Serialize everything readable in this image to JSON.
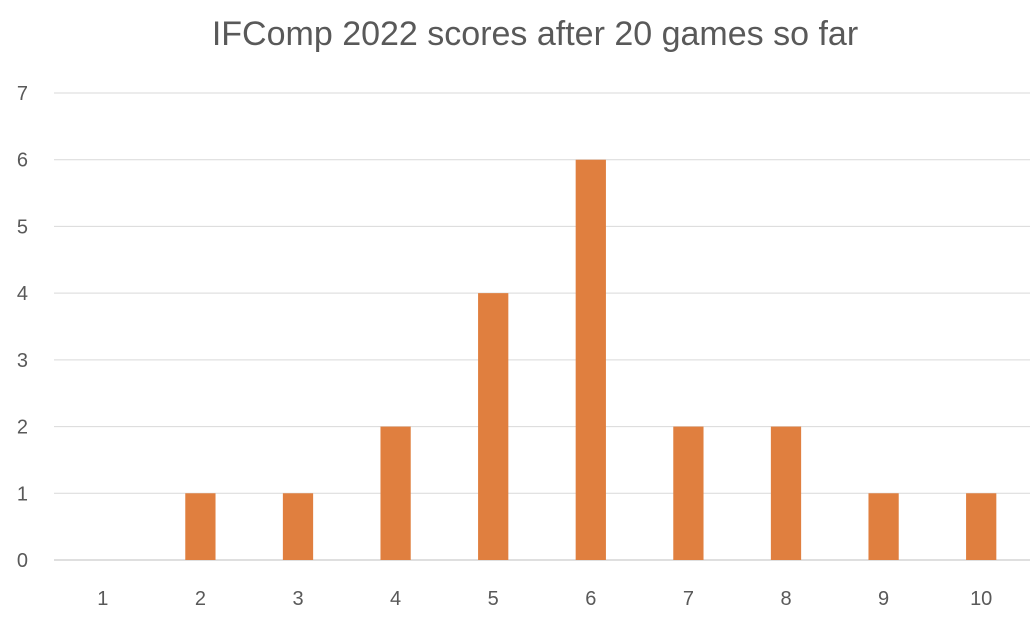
{
  "chart_data": {
    "type": "bar",
    "title": "IFComp 2022 scores after 20 games so far",
    "xlabel": "",
    "ylabel": "",
    "categories": [
      "1",
      "2",
      "3",
      "4",
      "5",
      "6",
      "7",
      "8",
      "9",
      "10"
    ],
    "series": [
      {
        "values": [
          0,
          1,
          1,
          2,
          4,
          6,
          2,
          2,
          1,
          1
        ],
        "color": "#e07f3f"
      }
    ],
    "ylim": [
      0,
      7
    ],
    "yticks": [
      "0",
      "1",
      "2",
      "3",
      "4",
      "5",
      "6",
      "7"
    ],
    "grid": true,
    "legend": "none"
  }
}
